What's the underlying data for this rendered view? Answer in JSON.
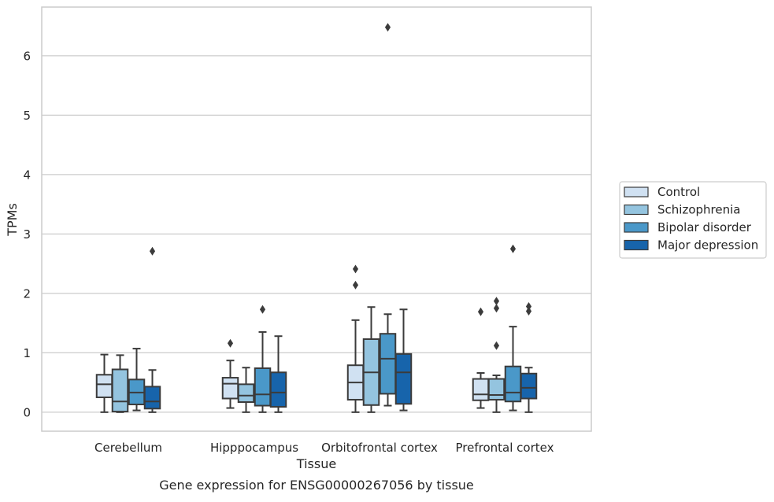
{
  "chart_data": {
    "type": "box",
    "caption": "Gene expression for ENSG00000267056 by tissue",
    "xlabel": "Tissue",
    "ylabel": "TPMs",
    "ylim": [
      -0.32,
      6.82
    ],
    "yticks": [
      0,
      1,
      2,
      3,
      4,
      5,
      6
    ],
    "grid": "horizontal",
    "legend_position": "right",
    "categories": [
      "Cerebellum",
      "Hipppocampus",
      "Orbitofrontal cortex",
      "Prefrontal cortex"
    ],
    "series": [
      {
        "name": "Control",
        "color": "#d0e1f2",
        "boxes": [
          {
            "whisker_low": 0.0,
            "q1": 0.25,
            "median": 0.47,
            "q3": 0.63,
            "whisker_high": 0.97,
            "outliers": []
          },
          {
            "whisker_low": 0.07,
            "q1": 0.23,
            "median": 0.48,
            "q3": 0.58,
            "whisker_high": 0.87,
            "outliers": [
              1.16
            ]
          },
          {
            "whisker_low": 0.0,
            "q1": 0.21,
            "median": 0.5,
            "q3": 0.79,
            "whisker_high": 1.55,
            "outliers": [
              2.14,
              2.41
            ]
          },
          {
            "whisker_low": 0.07,
            "q1": 0.2,
            "median": 0.3,
            "q3": 0.56,
            "whisker_high": 0.66,
            "outliers": [
              1.69
            ]
          }
        ]
      },
      {
        "name": "Schizophrenia",
        "color": "#94c4df",
        "boxes": [
          {
            "whisker_low": 0.0,
            "q1": 0.01,
            "median": 0.18,
            "q3": 0.72,
            "whisker_high": 0.96,
            "outliers": []
          },
          {
            "whisker_low": 0.0,
            "q1": 0.17,
            "median": 0.28,
            "q3": 0.47,
            "whisker_high": 0.75,
            "outliers": []
          },
          {
            "whisker_low": 0.0,
            "q1": 0.12,
            "median": 0.67,
            "q3": 1.23,
            "whisker_high": 1.77,
            "outliers": []
          },
          {
            "whisker_low": 0.0,
            "q1": 0.21,
            "median": 0.29,
            "q3": 0.56,
            "whisker_high": 0.62,
            "outliers": [
              1.12,
              1.75,
              1.87
            ]
          }
        ]
      },
      {
        "name": "Bipolar disorder",
        "color": "#4a98c9",
        "boxes": [
          {
            "whisker_low": 0.03,
            "q1": 0.13,
            "median": 0.33,
            "q3": 0.55,
            "whisker_high": 1.07,
            "outliers": []
          },
          {
            "whisker_low": 0.0,
            "q1": 0.11,
            "median": 0.3,
            "q3": 0.74,
            "whisker_high": 1.35,
            "outliers": [
              1.73
            ]
          },
          {
            "whisker_low": 0.11,
            "q1": 0.31,
            "median": 0.9,
            "q3": 1.32,
            "whisker_high": 1.65,
            "outliers": [
              6.48
            ]
          },
          {
            "whisker_low": 0.03,
            "q1": 0.18,
            "median": 0.33,
            "q3": 0.77,
            "whisker_high": 1.44,
            "outliers": [
              2.75
            ]
          }
        ]
      },
      {
        "name": "Major depression",
        "color": "#1764ab",
        "boxes": [
          {
            "whisker_low": 0.0,
            "q1": 0.06,
            "median": 0.18,
            "q3": 0.43,
            "whisker_high": 0.71,
            "outliers": [
              2.71
            ]
          },
          {
            "whisker_low": 0.0,
            "q1": 0.09,
            "median": 0.33,
            "q3": 0.67,
            "whisker_high": 1.28,
            "outliers": []
          },
          {
            "whisker_low": 0.03,
            "q1": 0.14,
            "median": 0.67,
            "q3": 0.98,
            "whisker_high": 1.73,
            "outliers": []
          },
          {
            "whisker_low": 0.0,
            "q1": 0.23,
            "median": 0.41,
            "q3": 0.65,
            "whisker_high": 0.75,
            "outliers": [
              1.7,
              1.78
            ]
          }
        ]
      }
    ]
  }
}
